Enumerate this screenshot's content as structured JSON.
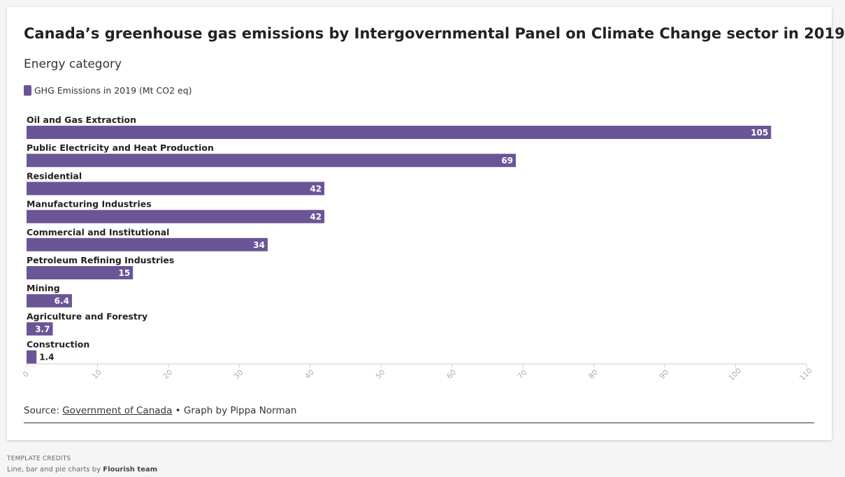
{
  "title": "Canada’s greenhouse gas emissions by Intergovernmental Panel on Climate Change sector in 2019",
  "subtitle": "Energy category",
  "colors": {
    "bar": "#6b5596",
    "axis": "#cccccc",
    "tick_text": "#aaaaaa"
  },
  "chart_data": {
    "type": "bar",
    "orientation": "horizontal",
    "categories": [
      "Oil and Gas Extraction",
      "Public Electricity and Heat Production",
      "Residential",
      "Manufacturing Industries",
      "Commercial and Institutional",
      "Petroleum Refining Industries",
      "Mining",
      "Agriculture and Forestry",
      "Construction"
    ],
    "series": [
      {
        "name": "GHG Emissions in 2019 (Mt CO2 eq)",
        "values": [
          105,
          69,
          42,
          42,
          34,
          15,
          6.4,
          3.7,
          1.4
        ],
        "labels": [
          "105",
          "69",
          "42",
          "42",
          "34",
          "15",
          "6.4",
          "3.7",
          "1.4"
        ]
      }
    ],
    "xlim": [
      0,
      110
    ],
    "xticks": [
      0,
      10,
      20,
      30,
      40,
      50,
      60,
      70,
      80,
      90,
      100,
      110
    ],
    "grid": false,
    "legend": "top-left"
  },
  "footer": {
    "prefix": "Source: ",
    "source_link": "Government of Canada",
    "suffix": " • Graph by Pippa Norman"
  },
  "credits": {
    "heading": "Template credits",
    "text": "Line, bar and pie charts by ",
    "author": "Flourish team"
  }
}
